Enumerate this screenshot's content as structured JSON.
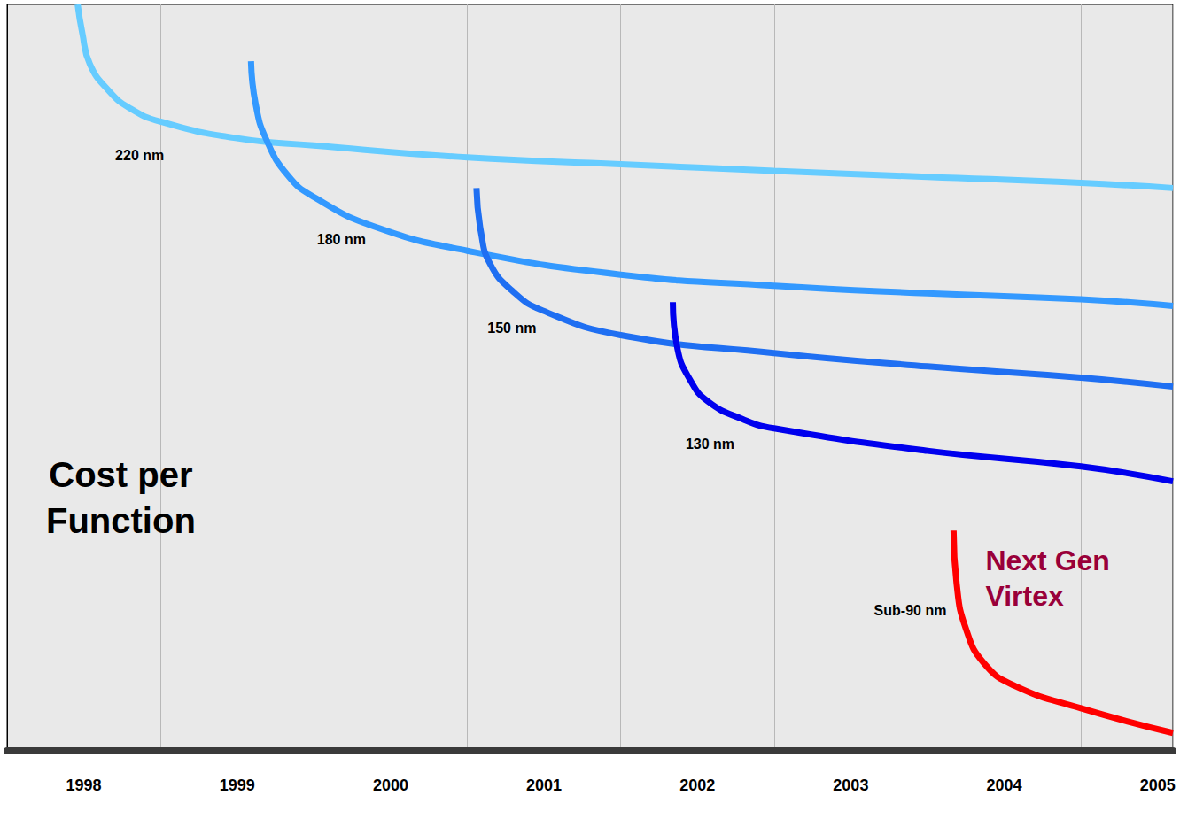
{
  "chart_data": {
    "type": "line",
    "ylabel": "Cost per Function",
    "xlim": [
      1998,
      2005.6
    ],
    "xticks": [
      {
        "value": 1998.5,
        "label": "1998"
      },
      {
        "value": 1999.5,
        "label": "1999"
      },
      {
        "value": 2000.5,
        "label": "2000"
      },
      {
        "value": 2001.5,
        "label": "2001"
      },
      {
        "value": 2002.5,
        "label": "2002"
      },
      {
        "value": 2003.5,
        "label": "2003"
      },
      {
        "value": 2004.5,
        "label": "2004"
      },
      {
        "value": 2005.5,
        "label": "2005"
      }
    ],
    "ylim": [
      0,
      100
    ],
    "tick_labels": "x",
    "grid": true,
    "series": [
      {
        "name": "220 nm",
        "color": "#66ccff",
        "x": [
          1998.46,
          1998.49,
          1998.54,
          1998.66,
          1998.8,
          1999.0,
          1999.49,
          2000.0,
          2001.0,
          2002.0,
          2003.0,
          2004.0,
          2005.0,
          2005.6
        ],
        "values": [
          100,
          96.2,
          92.0,
          88.5,
          86.1,
          84.3,
          82.1,
          81.1,
          79.5,
          78.6,
          77.7,
          76.9,
          76.1,
          75.4
        ]
      },
      {
        "name": "180 nm",
        "color": "#3399ff",
        "x": [
          1999.59,
          1999.62,
          1999.69,
          1999.83,
          2000.0,
          2000.4,
          2001.0,
          2002.0,
          2003.0,
          2004.0,
          2005.0,
          2005.6
        ],
        "values": [
          92.4,
          86.7,
          81.9,
          77.1,
          74.2,
          70.2,
          67.0,
          63.8,
          62.3,
          61.3,
          60.5,
          59.6
        ]
      },
      {
        "name": "150 nm",
        "color": "#1f6ff2",
        "x": [
          2001.06,
          2001.09,
          2001.15,
          2001.29,
          2001.49,
          2002.0,
          2003.0,
          2004.0,
          2005.0,
          2005.6
        ],
        "values": [
          75.4,
          69.4,
          65.2,
          61.7,
          59.0,
          55.7,
          53.3,
          51.5,
          50.0,
          48.8
        ]
      },
      {
        "name": "130 nm",
        "color": "#0000ee",
        "x": [
          2002.34,
          2002.37,
          2002.45,
          2002.57,
          2002.8,
          2003.0,
          2004.0,
          2005.0,
          2005.6
        ],
        "values": [
          60.1,
          53.9,
          49.8,
          46.8,
          44.4,
          43.2,
          40.2,
          38.1,
          36.1
        ]
      },
      {
        "name": "Sub-90 nm",
        "color": "#ff0000",
        "x": [
          2004.17,
          2004.19,
          2004.25,
          2004.37,
          2004.57,
          2005.0,
          2005.6
        ],
        "values": [
          29.5,
          22.4,
          16.4,
          11.7,
          8.7,
          5.7,
          2.4
        ]
      }
    ],
    "annotations": [
      {
        "text": "Next Gen Virtex",
        "series": "Sub-90 nm",
        "color": "#99003a"
      }
    ]
  }
}
